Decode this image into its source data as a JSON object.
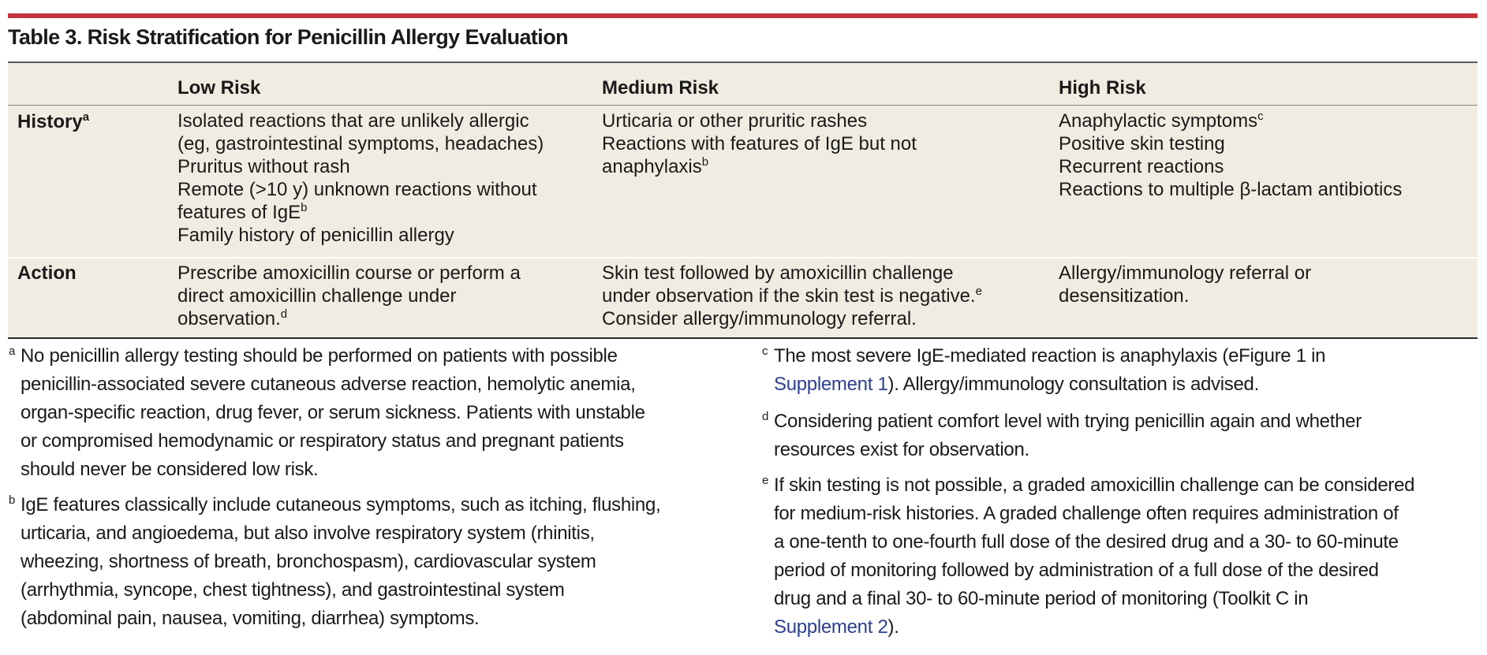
{
  "title": "Table 3. Risk Stratification for Penicillin Allergy Evaluation",
  "columns": [
    "Low Risk",
    "Medium Risk",
    "High Risk"
  ],
  "rows": [
    {
      "label": "History",
      "label_note": "a",
      "low": [
        {
          "text": "Isolated reactions that are unlikely allergic"
        },
        {
          "text": "(eg, gastrointestinal symptoms, headaches)"
        },
        {
          "text": "Pruritus without rash"
        },
        {
          "text": "Remote (>10 y) unknown reactions without"
        },
        {
          "text": "features of IgE",
          "note": "b"
        },
        {
          "text": "Family history of penicillin allergy"
        }
      ],
      "medium": [
        {
          "text": "Urticaria or other pruritic rashes"
        },
        {
          "text": "Reactions with features of IgE but not"
        },
        {
          "text": "anaphylaxis",
          "note": "b"
        }
      ],
      "high": [
        {
          "text": "Anaphylactic symptoms",
          "note": "c"
        },
        {
          "text": "Positive skin testing"
        },
        {
          "text": "Recurrent reactions"
        },
        {
          "text": "Reactions to multiple β-lactam antibiotics"
        }
      ]
    },
    {
      "label": "Action",
      "low": [
        {
          "text": "Prescribe amoxicillin course or perform a"
        },
        {
          "text": "direct amoxicillin challenge under"
        },
        {
          "text": "observation.",
          "note": "d"
        }
      ],
      "medium": [
        {
          "text": "Skin test followed by amoxicillin challenge"
        },
        {
          "text": "under observation if the skin test is negative.",
          "note": "e"
        },
        {
          "text": "Consider allergy/immunology referral."
        }
      ],
      "high": [
        {
          "text": "Allergy/immunology referral or"
        },
        {
          "text": "desensitization."
        }
      ]
    }
  ],
  "footnotes": {
    "a": {
      "mark": "a",
      "lines": [
        "No penicillin allergy testing should be performed on patients with possible",
        "penicillin-associated severe cutaneous adverse reaction, hemolytic anemia,",
        "organ-specific reaction, drug fever, or serum sickness. Patients with unstable",
        "or compromised hemodynamic or respiratory status and pregnant patients",
        "should never be considered low risk."
      ]
    },
    "b": {
      "mark": "b",
      "lines": [
        "IgE features classically include cutaneous symptoms, such as itching, flushing,",
        "urticaria, and angioedema, but also involve respiratory system (rhinitis,",
        "wheezing, shortness of breath, bronchospasm), cardiovascular system",
        "(arrhythmia, syncope, chest tightness), and gastrointestinal system",
        "(abdominal pain, nausea, vomiting, diarrhea) symptoms."
      ]
    },
    "c": {
      "mark": "c",
      "line1": "The most severe IgE-mediated reaction is anaphylaxis (eFigure 1 in",
      "link": "Supplement 1",
      "line2_rest": "). Allergy/immunology consultation is advised."
    },
    "d": {
      "mark": "d",
      "lines": [
        "Considering patient comfort level with trying penicillin again and whether",
        "resources exist for observation."
      ]
    },
    "e": {
      "mark": "e",
      "lines": [
        "If skin testing is not possible, a graded amoxicillin challenge can be considered",
        "for medium-risk histories. A graded challenge often requires administration of",
        "a one-tenth to one-fourth full dose of the desired drug and a 30- to 60-minute",
        "period of monitoring followed by administration of a full dose of the desired",
        "drug and a final 30- to 60-minute period of monitoring (Toolkit C in"
      ],
      "link": "Supplement 2",
      "last_rest": ")."
    }
  },
  "colors": {
    "accent_rule": "#c4343f",
    "table_bg": "#f0ece1",
    "link": "#2d3f8f"
  }
}
